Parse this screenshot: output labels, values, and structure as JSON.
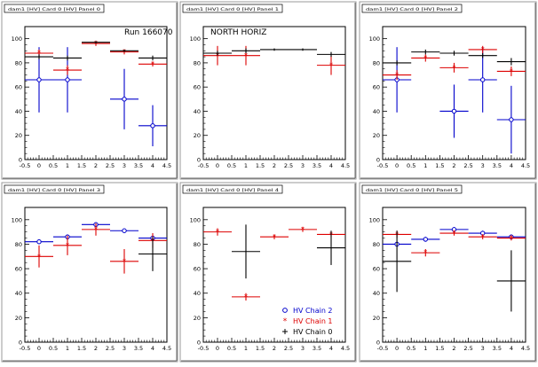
{
  "chart_data": [
    {
      "type": "scatter",
      "title": "dam1 [HV] Card 0 [HV] Panel 0",
      "annotation": "Run 166070",
      "xlim": [
        -0.5,
        4.5
      ],
      "ylim": [
        0,
        110
      ],
      "xticks": [
        "-0.5",
        "0",
        "0.5",
        "1",
        "1.5",
        "2",
        "2.5",
        "3",
        "3.5",
        "4",
        "4.5"
      ],
      "yticks": [
        "0",
        "20",
        "40",
        "60",
        "80",
        "100"
      ],
      "series": [
        {
          "name": "HV Chain 2",
          "color": "#0000cc",
          "x": [
            0,
            1,
            3,
            4
          ],
          "y": [
            66,
            66,
            50,
            28
          ],
          "yerr": [
            27,
            27,
            25,
            17
          ]
        },
        {
          "name": "HV Chain 1",
          "color": "#dd0000",
          "x": [
            0,
            1,
            2,
            3,
            4
          ],
          "y": [
            88,
            74,
            96,
            89,
            79
          ],
          "yerr": [
            3,
            4,
            2,
            2,
            2
          ]
        },
        {
          "name": "HV Chain 0",
          "color": "#000000",
          "x": [
            0,
            1,
            2,
            3,
            4
          ],
          "y": [
            85,
            84,
            97,
            90,
            84
          ],
          "yerr": [
            2,
            2,
            1,
            1,
            2
          ]
        }
      ]
    },
    {
      "type": "scatter",
      "title": "dam1 [HV] Card 0 [HV] Panel 1",
      "annotation": "NORTH HORIZ",
      "xlim": [
        -0.5,
        4.5
      ],
      "ylim": [
        0,
        110
      ],
      "xticks": [
        "-0.5",
        "0",
        "0.5",
        "1",
        "1.5",
        "2",
        "2.5",
        "3",
        "3.5",
        "4",
        "4.5"
      ],
      "yticks": [
        "0",
        "20",
        "40",
        "60",
        "80",
        "100"
      ],
      "series": [
        {
          "name": "HV Chain 2",
          "color": "#0000cc",
          "x": [],
          "y": [],
          "yerr": []
        },
        {
          "name": "HV Chain 1",
          "color": "#dd0000",
          "x": [
            0,
            1,
            4
          ],
          "y": [
            86,
            86,
            78
          ],
          "yerr": [
            8,
            8,
            8
          ]
        },
        {
          "name": "HV Chain 0",
          "color": "#000000",
          "x": [
            0,
            1,
            2,
            3,
            4
          ],
          "y": [
            88,
            90,
            91,
            91,
            87
          ],
          "yerr": [
            2,
            2,
            1,
            1,
            2
          ]
        }
      ]
    },
    {
      "type": "scatter",
      "title": "dam1 [HV] Card 0 [HV] Panel 2",
      "annotation": "",
      "xlim": [
        -0.5,
        4.5
      ],
      "ylim": [
        0,
        110
      ],
      "xticks": [
        "-0.5",
        "0",
        "0.5",
        "1",
        "1.5",
        "2",
        "2.5",
        "3",
        "3.5",
        "4",
        "4.5"
      ],
      "yticks": [
        "0",
        "20",
        "40",
        "60",
        "80",
        "100"
      ],
      "series": [
        {
          "name": "HV Chain 2",
          "color": "#0000cc",
          "x": [
            0,
            2,
            3,
            4
          ],
          "y": [
            66,
            40,
            66,
            33
          ],
          "yerr": [
            27,
            22,
            27,
            28
          ]
        },
        {
          "name": "HV Chain 1",
          "color": "#dd0000",
          "x": [
            0,
            1,
            2,
            3,
            4
          ],
          "y": [
            70,
            84,
            76,
            91,
            73
          ],
          "yerr": [
            4,
            3,
            4,
            3,
            4
          ]
        },
        {
          "name": "HV Chain 0",
          "color": "#000000",
          "x": [
            0,
            1,
            2,
            3,
            4
          ],
          "y": [
            80,
            89,
            88,
            86,
            81
          ],
          "yerr": [
            2,
            2,
            2,
            2,
            3
          ]
        }
      ]
    },
    {
      "type": "scatter",
      "title": "dam1 [HV] Card 0 [HV] Panel 3",
      "annotation": "",
      "xlim": [
        -0.5,
        4.5
      ],
      "ylim": [
        0,
        110
      ],
      "xticks": [
        "-0.5",
        "0",
        "0.5",
        "1",
        "1.5",
        "2",
        "2.5",
        "3",
        "3.5",
        "4",
        "4.5"
      ],
      "yticks": [
        "0",
        "20",
        "40",
        "60",
        "80",
        "100"
      ],
      "series": [
        {
          "name": "HV Chain 2",
          "color": "#0000cc",
          "x": [
            0,
            1,
            2,
            3,
            4
          ],
          "y": [
            82,
            86,
            96,
            91,
            85
          ],
          "yerr": [
            2,
            2,
            2,
            1,
            2
          ]
        },
        {
          "name": "HV Chain 1",
          "color": "#dd0000",
          "x": [
            0,
            1,
            2,
            3,
            4
          ],
          "y": [
            70,
            79,
            92,
            66,
            83
          ],
          "yerr": [
            9,
            8,
            5,
            10,
            6
          ]
        },
        {
          "name": "HV Chain 0",
          "color": "#000000",
          "x": [
            4
          ],
          "y": [
            72
          ],
          "yerr": [
            14
          ]
        }
      ]
    },
    {
      "type": "scatter",
      "title": "dam1 [HV] Card 0 [HV] Panel 4",
      "annotation": "",
      "xlim": [
        -0.5,
        4.5
      ],
      "ylim": [
        0,
        110
      ],
      "xticks": [
        "-0.5",
        "0",
        "0.5",
        "1",
        "1.5",
        "2",
        "2.5",
        "3",
        "3.5",
        "4",
        "4.5"
      ],
      "yticks": [
        "0",
        "20",
        "40",
        "60",
        "80",
        "100"
      ],
      "series": [
        {
          "name": "HV Chain 2",
          "color": "#0000cc",
          "x": [],
          "y": [],
          "yerr": []
        },
        {
          "name": "HV Chain 1",
          "color": "#dd0000",
          "x": [
            0,
            1,
            2,
            3,
            4
          ],
          "y": [
            90,
            37,
            86,
            92,
            88
          ],
          "yerr": [
            3,
            3,
            2,
            2,
            2
          ]
        },
        {
          "name": "HV Chain 0",
          "color": "#000000",
          "x": [
            1,
            4
          ],
          "y": [
            74,
            77
          ],
          "yerr": [
            22,
            14
          ]
        }
      ]
    },
    {
      "type": "scatter",
      "title": "dam1 [HV] Card 0 [HV] Panel 5",
      "annotation": "",
      "xlim": [
        -0.5,
        4.5
      ],
      "ylim": [
        0,
        110
      ],
      "xticks": [
        "-0.5",
        "0",
        "0.5",
        "1",
        "1.5",
        "2",
        "2.5",
        "3",
        "3.5",
        "4",
        "4.5"
      ],
      "yticks": [
        "0",
        "20",
        "40",
        "60",
        "80",
        "100"
      ],
      "series": [
        {
          "name": "HV Chain 2",
          "color": "#0000cc",
          "x": [
            0,
            1,
            2,
            3,
            4
          ],
          "y": [
            80,
            84,
            92,
            89,
            86
          ],
          "yerr": [
            2,
            2,
            2,
            2,
            2
          ]
        },
        {
          "name": "HV Chain 1",
          "color": "#dd0000",
          "x": [
            0,
            1,
            2,
            3,
            4
          ],
          "y": [
            88,
            73,
            89,
            86,
            85
          ],
          "yerr": [
            3,
            3,
            2,
            2,
            2
          ]
        },
        {
          "name": "HV Chain 0",
          "color": "#000000",
          "x": [
            0,
            4
          ],
          "y": [
            66,
            50
          ],
          "yerr": [
            25,
            25
          ]
        }
      ]
    }
  ],
  "legend": {
    "entries": [
      {
        "label": "HV Chain 2",
        "color": "#0000cc",
        "marker": "circle"
      },
      {
        "label": "HV Chain 1",
        "color": "#dd0000",
        "marker": "star"
      },
      {
        "label": "HV Chain 0",
        "color": "#000000",
        "marker": "cross"
      }
    ]
  }
}
